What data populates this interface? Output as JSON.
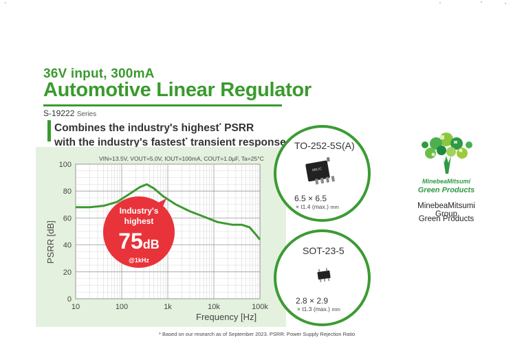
{
  "header": {
    "subtitle": "36V input, 300mA",
    "title": "Automotive Linear Regulator",
    "series_code": "S-19222",
    "series_suffix": "Series",
    "tagline_line1": "Combines the industry's highest",
    "tagline_line2_a": "with the industry's fastest",
    "tagline_line2_b": " transient response",
    "tagline_psrr": " PSRR",
    "star": "*"
  },
  "chart_data": {
    "type": "line",
    "conditions": "VIN=13.5V, VOUT=5.0V, IOUT=100mA, COUT=1.0μF, Ta=25°C",
    "xlabel": "Frequency [Hz]",
    "ylabel": "PSRR [dB]",
    "xscale": "log",
    "xlim": [
      10,
      100000
    ],
    "ylim": [
      0,
      100
    ],
    "x_ticks": [
      "10",
      "100",
      "1k",
      "10k",
      "100k"
    ],
    "y_ticks": [
      "0",
      "20",
      "40",
      "60",
      "80",
      "100"
    ],
    "grid": true,
    "series": [
      {
        "color": "#3a9a2e",
        "x": [
          10,
          20,
          40,
          80,
          150,
          250,
          350,
          500,
          800,
          1500,
          3000,
          6000,
          12000,
          25000,
          40000,
          60000,
          80000,
          100000
        ],
        "y": [
          68,
          68,
          69,
          72,
          78,
          83,
          85,
          82,
          76,
          70,
          65,
          61,
          57,
          55,
          55,
          53,
          48,
          44
        ]
      }
    ],
    "callout": {
      "line1": "Industry's",
      "line2": "highest",
      "value": "75",
      "unit": "dB",
      "note": "@1kHz",
      "color": "#e8333a"
    }
  },
  "packages": [
    {
      "name": "TO-252-5S(A)",
      "dims": "6.5 × 6.5",
      "height": "× t1.4 (max.)",
      "unit": "mm",
      "chip_text": "ABLIC"
    },
    {
      "name": "SOT-23-5",
      "dims": "2.8 × 2.9",
      "height": "× t1.3 (max.)",
      "unit": "mm"
    }
  ],
  "footnote": "* Based on our research as of September 2023.  PSRR: Power Supply Rejection Ratio",
  "brand": {
    "logo_line1": "MinebeaMitsumi",
    "logo_line2": "Green Products",
    "caption_line1": "MinebeaMitsumi Group",
    "caption_line2": "Green Products"
  },
  "colors": {
    "accent_green": "#3a9a2e",
    "panel_green": "#e4f1de",
    "callout_red": "#e8333a"
  }
}
